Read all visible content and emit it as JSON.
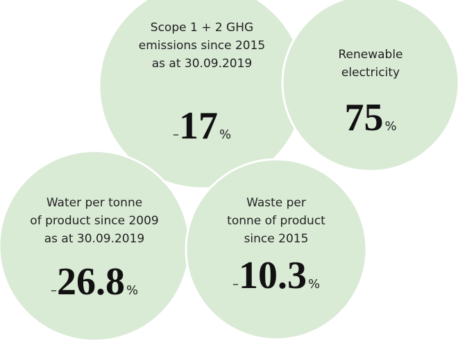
{
  "items": [
    {
      "lines": [
        "Scope 1 + 2 GHG",
        "emissions since 2015",
        "as at 30.09.2019"
      ],
      "sign": "–",
      "value": 17,
      "unit": "%"
    },
    {
      "lines": [
        "Renewable",
        "electricity"
      ],
      "value": 75,
      "unit": "%"
    },
    {
      "lines": [
        "Water per tonne",
        "of product since 2009",
        "as at 30.09.2019"
      ],
      "sign": "–",
      "value": 26.8,
      "unit": "%"
    },
    {
      "lines": [
        "Waste per",
        "tonne of product",
        "since 2015"
      ],
      "sign": "–",
      "value": 10.3,
      "unit": "%"
    }
  ]
}
